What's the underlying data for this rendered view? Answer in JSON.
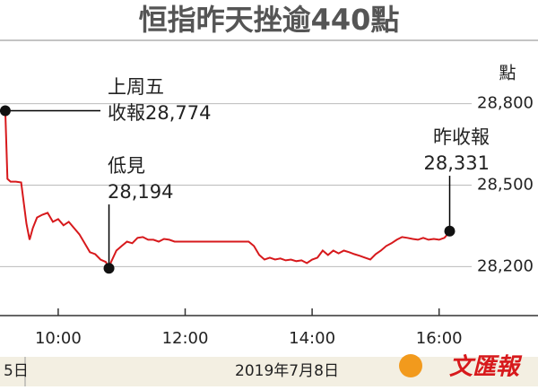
{
  "chart_data": {
    "type": "line",
    "title": "恒指昨天挫逾440點",
    "y_unit": "點",
    "x": [
      "09:10",
      "09:12",
      "09:15",
      "09:20",
      "09:25",
      "09:30",
      "09:33",
      "09:36",
      "09:40",
      "09:45",
      "09:50",
      "09:55",
      "10:00",
      "10:05",
      "10:10",
      "10:15",
      "10:20",
      "10:25",
      "10:30",
      "10:35",
      "10:40",
      "10:45",
      "10:48",
      "10:50",
      "10:55",
      "11:00",
      "11:05",
      "11:10",
      "11:15",
      "11:20",
      "11:25",
      "11:30",
      "11:35",
      "11:40",
      "11:45",
      "11:50",
      "11:55",
      "12:00",
      "13:00",
      "13:05",
      "13:10",
      "13:15",
      "13:20",
      "13:25",
      "13:30",
      "13:35",
      "13:40",
      "13:45",
      "13:50",
      "13:55",
      "14:00",
      "14:05",
      "14:10",
      "14:15",
      "14:20",
      "14:25",
      "14:30",
      "14:35",
      "14:40",
      "14:45",
      "14:50",
      "14:55",
      "15:00",
      "15:05",
      "15:10",
      "15:15",
      "15:20",
      "15:25",
      "15:30",
      "15:35",
      "15:40",
      "15:45",
      "15:50",
      "15:55",
      "16:00",
      "16:05",
      "16:08",
      "16:10"
    ],
    "series": [
      {
        "name": "恒指",
        "color": "#d7191c",
        "values": [
          28774,
          28523,
          28513,
          28513,
          28510,
          28358,
          28299,
          28342,
          28381,
          28391,
          28398,
          28365,
          28375,
          28352,
          28365,
          28342,
          28319,
          28286,
          28253,
          28246,
          28226,
          28217,
          28194,
          28217,
          28259,
          28276,
          28292,
          28286,
          28306,
          28309,
          28299,
          28299,
          28292,
          28302,
          28299,
          28292,
          28292,
          28292,
          28292,
          28276,
          28243,
          28226,
          28233,
          28226,
          28230,
          28223,
          28226,
          28220,
          28223,
          28213,
          28226,
          28233,
          28259,
          28243,
          28259,
          28249,
          28259,
          28253,
          28246,
          28240,
          28233,
          28226,
          28246,
          28259,
          28276,
          28286,
          28299,
          28309,
          28306,
          28302,
          28299,
          28306,
          28299,
          28302,
          28299,
          28306,
          28319,
          28331
        ]
      }
    ],
    "xlim": [
      "09:05",
      "17:25"
    ],
    "xticks": [
      "10:00",
      "12:00",
      "14:00",
      "16:00"
    ],
    "ylim": [
      28000,
      29000
    ],
    "yticks": [
      {
        "value": 28200,
        "label": "28,200"
      },
      {
        "value": 28500,
        "label": "28,500"
      },
      {
        "value": 28800,
        "label": "28,800"
      }
    ],
    "grid": true,
    "annotations": [
      {
        "lines": [
          "上周五",
          "收報28,774"
        ]
      },
      {
        "lines": [
          "低見",
          "28,194"
        ]
      },
      {
        "lines": [
          "昨收報",
          "28,331"
        ]
      }
    ],
    "footer": {
      "left": "5日",
      "center": "2019年7月8日",
      "logo": "文匯報"
    }
  }
}
